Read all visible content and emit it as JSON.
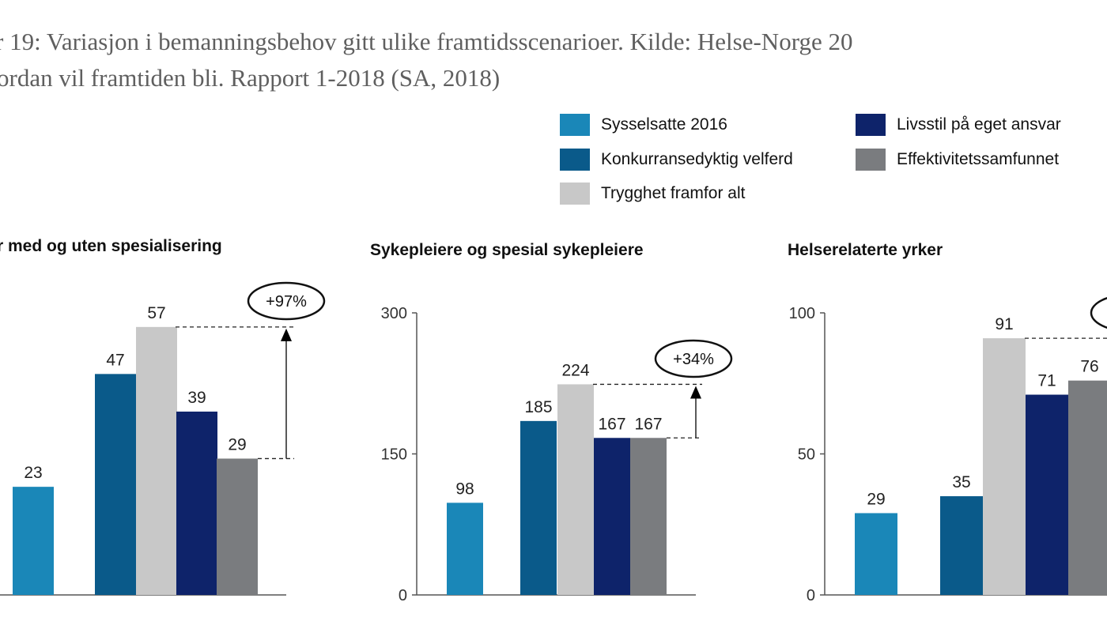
{
  "caption": {
    "line1": "r 19: Variasjon i bemanningsbehov gitt ulike framtidsscenarioer. Kilde: Helse-Norge 20",
    "line2": "ordan vil framtiden bli. Rapport 1-2018 (SA, 2018)"
  },
  "colors": {
    "Sysselsatte 2016": "#1a87b8",
    "Konkurransedyktig velferd": "#0a5a8a",
    "Trygghet framfor alt": "#c8c8c8",
    "Livsstil på eget ansvar": "#0e236a",
    "Effektivitetssamfunnet": "#7a7c7f"
  },
  "legend": [
    {
      "label": "Sysselsatte 2016"
    },
    {
      "label": "Konkurransedyktig velferd"
    },
    {
      "label": "Trygghet framfor alt"
    },
    {
      "label": "Livsstil på eget ansvar"
    },
    {
      "label": "Effektivitetssamfunnet"
    }
  ],
  "chart_data": [
    {
      "type": "bar",
      "title": "r med og uten spesialisering",
      "categories": [
        "Sysselsatte 2016",
        "Konkurransedyktig velferd",
        "Trygghet framfor alt",
        "Livsstil på eget ansvar",
        "Effektivitetssamfunnet"
      ],
      "values": [
        23,
        47,
        57,
        39,
        29
      ],
      "ylim": [
        0,
        60
      ],
      "yticks": [],
      "annotation": "+97%",
      "annotation_from": 29,
      "annotation_to": 57
    },
    {
      "type": "bar",
      "title": "Sykepleiere og spesial sykepleiere",
      "categories": [
        "Sysselsatte 2016",
        "Konkurransedyktig velferd",
        "Trygghet framfor alt",
        "Livsstil på eget ansvar",
        "Effektivitetssamfunnet"
      ],
      "values": [
        98,
        185,
        224,
        167,
        167
      ],
      "ylim": [
        0,
        300
      ],
      "yticks": [
        "0",
        "150",
        "300"
      ],
      "annotation": "+34%",
      "annotation_from": 167,
      "annotation_to": 224
    },
    {
      "type": "bar",
      "title": "Helserelaterte yrker",
      "categories": [
        "Sysselsatte 2016",
        "Konkurransedyktig velferd",
        "Trygghet framfor alt",
        "Livsstil på eget ansvar",
        "Effektivitetssamfunnet"
      ],
      "values": [
        29,
        35,
        91,
        71,
        76
      ],
      "ylim": [
        0,
        100
      ],
      "yticks": [
        "0",
        "50",
        "100"
      ],
      "annotation": "",
      "annotation_from": 76,
      "annotation_to": 91
    }
  ]
}
